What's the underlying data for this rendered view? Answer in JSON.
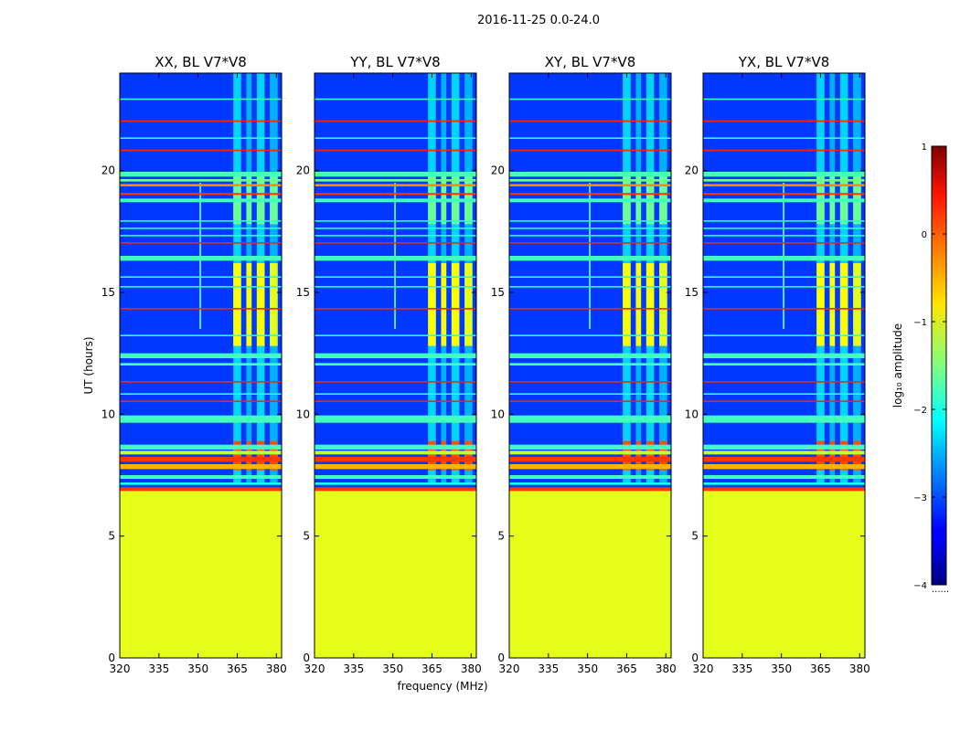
{
  "suptitle": "2016-11-25 0.0-24.0",
  "chart_data": {
    "type": "heatmap",
    "xlabel": "frequency (MHz)",
    "ylabel": "UT (hours)",
    "xlim": [
      320,
      382
    ],
    "ylim": [
      0,
      24
    ],
    "xticks": [
      320,
      335,
      350,
      365,
      380
    ],
    "yticks": [
      0,
      5,
      10,
      15,
      20
    ],
    "colorbar": {
      "label": "log₁₀ amplitude",
      "range": [
        -4,
        1
      ],
      "ticks": [
        1,
        0,
        -1,
        -2,
        -3,
        -4
      ],
      "tick_labels": [
        "1",
        "0",
        "−1",
        "−2",
        "−3",
        "−4"
      ],
      "colormap": "jet",
      "under_label": "......"
    },
    "fill_value": -1.0,
    "fill_until_hour": 6.9,
    "background_level": -3.1,
    "horizontal_bands": [
      {
        "t0": 6.85,
        "t1": 7.0,
        "value": 0.1
      },
      {
        "t0": 7.1,
        "t1": 7.2,
        "value": -2.0
      },
      {
        "t0": 7.35,
        "t1": 7.5,
        "value": -1.8
      },
      {
        "t0": 7.75,
        "t1": 7.95,
        "value": -0.5
      },
      {
        "t0": 8.05,
        "t1": 8.25,
        "value": 0.1
      },
      {
        "t0": 8.35,
        "t1": 8.5,
        "value": -1.2
      },
      {
        "t0": 8.55,
        "t1": 8.75,
        "value": -1.8
      },
      {
        "t0": 9.65,
        "t1": 9.95,
        "value": -1.8
      },
      {
        "t0": 10.5,
        "t1": 10.56,
        "value": 0.2
      },
      {
        "t0": 10.8,
        "t1": 10.86,
        "value": -1.9
      },
      {
        "t0": 11.3,
        "t1": 11.36,
        "value": 0.2
      },
      {
        "t0": 12.0,
        "t1": 12.1,
        "value": -1.8
      },
      {
        "t0": 12.3,
        "t1": 12.5,
        "value": -1.8
      },
      {
        "t0": 13.2,
        "t1": 13.26,
        "value": -1.9
      },
      {
        "t0": 14.3,
        "t1": 14.36,
        "value": 0.2
      },
      {
        "t0": 15.2,
        "t1": 15.26,
        "value": -1.9
      },
      {
        "t0": 15.6,
        "t1": 15.66,
        "value": -1.9
      },
      {
        "t0": 16.3,
        "t1": 16.5,
        "value": -1.8
      },
      {
        "t0": 17.0,
        "t1": 17.06,
        "value": 0.2
      },
      {
        "t0": 17.3,
        "t1": 17.36,
        "value": -1.9
      },
      {
        "t0": 17.6,
        "t1": 17.66,
        "value": -1.9
      },
      {
        "t0": 17.9,
        "t1": 17.96,
        "value": -1.9
      },
      {
        "t0": 18.7,
        "t1": 18.85,
        "value": -1.8
      },
      {
        "t0": 19.0,
        "t1": 19.08,
        "value": 0.1
      },
      {
        "t0": 19.35,
        "t1": 19.45,
        "value": -0.3
      },
      {
        "t0": 19.55,
        "t1": 19.65,
        "value": -1.6
      },
      {
        "t0": 19.75,
        "t1": 19.95,
        "value": -1.8
      },
      {
        "t0": 20.8,
        "t1": 20.86,
        "value": 0.2
      },
      {
        "t0": 21.3,
        "t1": 21.36,
        "value": -1.9
      },
      {
        "t0": 22.0,
        "t1": 22.06,
        "value": 0.2
      },
      {
        "t0": 22.9,
        "t1": 22.96,
        "value": -1.9
      }
    ],
    "rfi_columns": [
      {
        "f0": 363.5,
        "f1": 366.5,
        "t0": 7.2,
        "t1": 24.0,
        "value": -2.2
      },
      {
        "f0": 368.5,
        "f1": 370.5,
        "t0": 7.2,
        "t1": 24.0,
        "value": -2.4
      },
      {
        "f0": 372.5,
        "f1": 375.5,
        "t0": 7.2,
        "t1": 24.0,
        "value": -2.2
      },
      {
        "f0": 377.5,
        "f1": 380.5,
        "t0": 7.2,
        "t1": 24.0,
        "value": -2.4
      },
      {
        "f0": 350.5,
        "f1": 351.2,
        "t0": 13.5,
        "t1": 19.5,
        "value": -1.6
      }
    ],
    "rfi_blocks": [
      {
        "f0": 363.5,
        "f1": 366.5,
        "t0": 12.8,
        "t1": 16.2,
        "value": -0.9
      },
      {
        "f0": 368.5,
        "f1": 370.5,
        "t0": 12.8,
        "t1": 16.2,
        "value": -0.9
      },
      {
        "f0": 372.5,
        "f1": 375.5,
        "t0": 12.8,
        "t1": 16.2,
        "value": -0.9
      },
      {
        "f0": 377.5,
        "f1": 380.5,
        "t0": 12.8,
        "t1": 16.2,
        "value": -1.0
      },
      {
        "f0": 363.5,
        "f1": 366.5,
        "t0": 7.7,
        "t1": 8.9,
        "value": 0.0
      },
      {
        "f0": 368.5,
        "f1": 370.5,
        "t0": 7.7,
        "t1": 8.9,
        "value": 0.0
      },
      {
        "f0": 372.5,
        "f1": 375.5,
        "t0": 7.7,
        "t1": 8.9,
        "value": 0.0
      },
      {
        "f0": 377.5,
        "f1": 380.5,
        "t0": 7.7,
        "t1": 8.9,
        "value": 0.0
      },
      {
        "f0": 363.5,
        "f1": 366.5,
        "t0": 17.8,
        "t1": 19.8,
        "value": -1.6
      },
      {
        "f0": 368.5,
        "f1": 370.5,
        "t0": 17.8,
        "t1": 19.8,
        "value": -1.6
      },
      {
        "f0": 372.5,
        "f1": 375.5,
        "t0": 17.8,
        "t1": 19.8,
        "value": -1.6
      },
      {
        "f0": 377.5,
        "f1": 380.5,
        "t0": 17.8,
        "t1": 19.8,
        "value": -1.6
      }
    ],
    "panels": [
      {
        "name": "XX",
        "title": "XX, BL V7*V8"
      },
      {
        "name": "YY",
        "title": "YY, BL V7*V8"
      },
      {
        "name": "XY",
        "title": "XY, BL V7*V8"
      },
      {
        "name": "YX",
        "title": "YX, BL V7*V8"
      }
    ]
  }
}
